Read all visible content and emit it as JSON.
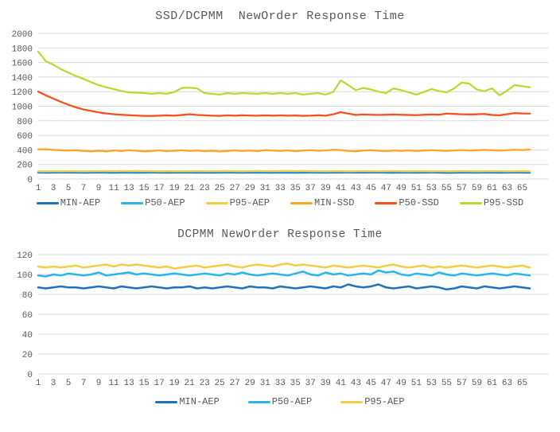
{
  "style": {
    "grid_color": "#D9D9D9",
    "text_color": "#595959",
    "background": "#FFFFFF"
  },
  "chart_data": [
    {
      "type": "line",
      "title": "SSD/DCPMM  NewOrder Response Time",
      "xlabel": "",
      "ylabel": "",
      "ylim": [
        0,
        2000
      ],
      "ytick_step": 200,
      "x_range": [
        1,
        66
      ],
      "x_ticks": [
        1,
        3,
        5,
        7,
        9,
        11,
        13,
        15,
        17,
        19,
        21,
        23,
        25,
        27,
        29,
        31,
        33,
        35,
        37,
        39,
        41,
        43,
        45,
        47,
        49,
        51,
        53,
        55,
        57,
        59,
        61,
        63,
        65
      ],
      "grid": true,
      "legend_position": "bottom",
      "series": [
        {
          "name": "MIN-AEP",
          "color": "#1E73BE",
          "values": [
            87,
            86,
            87,
            88,
            87,
            87,
            86,
            87,
            88,
            87,
            86,
            88,
            87,
            86,
            87,
            88,
            87,
            86,
            87,
            87,
            88,
            86,
            87,
            86,
            87,
            88,
            87,
            86,
            88,
            87,
            87,
            86,
            88,
            87,
            86,
            87,
            88,
            87,
            86,
            88,
            87,
            90,
            88,
            87,
            88,
            90,
            87,
            86,
            87,
            88,
            86,
            87,
            88,
            87,
            85,
            86,
            88,
            87,
            86,
            88,
            87,
            86,
            87,
            88,
            87,
            86
          ]
        },
        {
          "name": "P50-AEP",
          "color": "#29B6EA",
          "values": [
            99,
            98,
            100,
            99,
            101,
            100,
            99,
            100,
            102,
            99,
            100,
            101,
            102,
            100,
            101,
            100,
            99,
            100,
            101,
            100,
            99,
            100,
            101,
            100,
            99,
            101,
            100,
            102,
            100,
            99,
            100,
            101,
            100,
            99,
            101,
            103,
            100,
            99,
            102,
            100,
            101,
            99,
            100,
            101,
            100,
            104,
            102,
            103,
            100,
            99,
            101,
            100,
            99,
            102,
            100,
            99,
            101,
            100,
            99,
            100,
            101,
            100,
            99,
            101,
            100,
            99
          ]
        },
        {
          "name": "P95-AEP",
          "color": "#F2CE44",
          "values": [
            108,
            107,
            108,
            107,
            108,
            109,
            107,
            108,
            109,
            110,
            108,
            110,
            109,
            110,
            109,
            108,
            107,
            108,
            106,
            107,
            108,
            109,
            107,
            108,
            109,
            110,
            108,
            107,
            109,
            110,
            109,
            108,
            110,
            111,
            109,
            110,
            109,
            108,
            107,
            109,
            108,
            107,
            108,
            109,
            108,
            107,
            109,
            110,
            108,
            107,
            108,
            109,
            107,
            108,
            107,
            108,
            109,
            108,
            107,
            108,
            109,
            108,
            107,
            108,
            109,
            107
          ]
        },
        {
          "name": "MIN-SSD",
          "color": "#FFA51F",
          "values": [
            408,
            410,
            400,
            395,
            390,
            394,
            386,
            380,
            388,
            378,
            392,
            384,
            396,
            388,
            380,
            386,
            392,
            382,
            388,
            394,
            386,
            390,
            382,
            388,
            378,
            386,
            392,
            386,
            390,
            382,
            396,
            390,
            386,
            392,
            382,
            390,
            396,
            388,
            392,
            402,
            396,
            386,
            380,
            390,
            396,
            388,
            382,
            390,
            386,
            392,
            386,
            390,
            396,
            390,
            386,
            392,
            398,
            390,
            394,
            400,
            394,
            390,
            396,
            402,
            398,
            404
          ]
        },
        {
          "name": "P50-SSD",
          "color": "#F94D1C",
          "values": [
            1200,
            1150,
            1105,
            1060,
            1020,
            985,
            955,
            935,
            915,
            900,
            890,
            882,
            876,
            872,
            868,
            866,
            870,
            874,
            870,
            880,
            890,
            880,
            875,
            870,
            868,
            874,
            870,
            875,
            872,
            870,
            874,
            870,
            874,
            870,
            873,
            868,
            870,
            875,
            870,
            888,
            918,
            898,
            880,
            886,
            882,
            880,
            882,
            886,
            883,
            880,
            878,
            882,
            886,
            883,
            898,
            894,
            890,
            886,
            890,
            893,
            880,
            875,
            890,
            906,
            900,
            898
          ]
        },
        {
          "name": "P95-SSD",
          "color": "#BFD72F",
          "values": [
            1750,
            1620,
            1570,
            1510,
            1460,
            1415,
            1375,
            1330,
            1290,
            1260,
            1235,
            1210,
            1190,
            1185,
            1180,
            1170,
            1180,
            1170,
            1195,
            1250,
            1255,
            1245,
            1180,
            1170,
            1160,
            1180,
            1170,
            1180,
            1175,
            1170,
            1180,
            1170,
            1180,
            1170,
            1180,
            1160,
            1170,
            1180,
            1160,
            1195,
            1355,
            1290,
            1220,
            1250,
            1230,
            1200,
            1180,
            1245,
            1220,
            1190,
            1160,
            1195,
            1235,
            1210,
            1190,
            1245,
            1325,
            1310,
            1230,
            1205,
            1245,
            1150,
            1215,
            1290,
            1275,
            1260
          ]
        }
      ]
    },
    {
      "type": "line",
      "title": "DCPMM NewOrder Response Time",
      "xlabel": "",
      "ylabel": "",
      "ylim": [
        0,
        120
      ],
      "ytick_step": 20,
      "x_range": [
        1,
        66
      ],
      "x_ticks": [
        1,
        3,
        5,
        7,
        9,
        11,
        13,
        15,
        17,
        19,
        21,
        23,
        25,
        27,
        29,
        31,
        33,
        35,
        37,
        39,
        41,
        43,
        45,
        47,
        49,
        51,
        53,
        55,
        57,
        59,
        61,
        63,
        65
      ],
      "grid": true,
      "legend_position": "bottom",
      "series": [
        {
          "name": "MIN-AEP",
          "color": "#1E73BE",
          "values": [
            87,
            86,
            87,
            88,
            87,
            87,
            86,
            87,
            88,
            87,
            86,
            88,
            87,
            86,
            87,
            88,
            87,
            86,
            87,
            87,
            88,
            86,
            87,
            86,
            87,
            88,
            87,
            86,
            88,
            87,
            87,
            86,
            88,
            87,
            86,
            87,
            88,
            87,
            86,
            88,
            87,
            90,
            88,
            87,
            88,
            90,
            87,
            86,
            87,
            88,
            86,
            87,
            88,
            87,
            85,
            86,
            88,
            87,
            86,
            88,
            87,
            86,
            87,
            88,
            87,
            86
          ]
        },
        {
          "name": "P50-AEP",
          "color": "#29B6EA",
          "values": [
            99,
            98,
            100,
            99,
            101,
            100,
            99,
            100,
            102,
            99,
            100,
            101,
            102,
            100,
            101,
            100,
            99,
            100,
            101,
            100,
            99,
            100,
            101,
            100,
            99,
            101,
            100,
            102,
            100,
            99,
            100,
            101,
            100,
            99,
            101,
            103,
            100,
            99,
            102,
            100,
            101,
            99,
            100,
            101,
            100,
            104,
            102,
            103,
            100,
            99,
            101,
            100,
            99,
            102,
            100,
            99,
            101,
            100,
            99,
            100,
            101,
            100,
            99,
            101,
            100,
            99
          ]
        },
        {
          "name": "P95-AEP",
          "color": "#F2CE44",
          "values": [
            108,
            107,
            108,
            107,
            108,
            109,
            107,
            108,
            109,
            110,
            108,
            110,
            109,
            110,
            109,
            108,
            107,
            108,
            106,
            107,
            108,
            109,
            107,
            108,
            109,
            110,
            108,
            107,
            109,
            110,
            109,
            108,
            110,
            111,
            109,
            110,
            109,
            108,
            107,
            109,
            108,
            107,
            108,
            109,
            108,
            107,
            109,
            110,
            108,
            107,
            108,
            109,
            107,
            108,
            107,
            108,
            109,
            108,
            107,
            108,
            109,
            108,
            107,
            108,
            109,
            107
          ]
        }
      ]
    }
  ]
}
